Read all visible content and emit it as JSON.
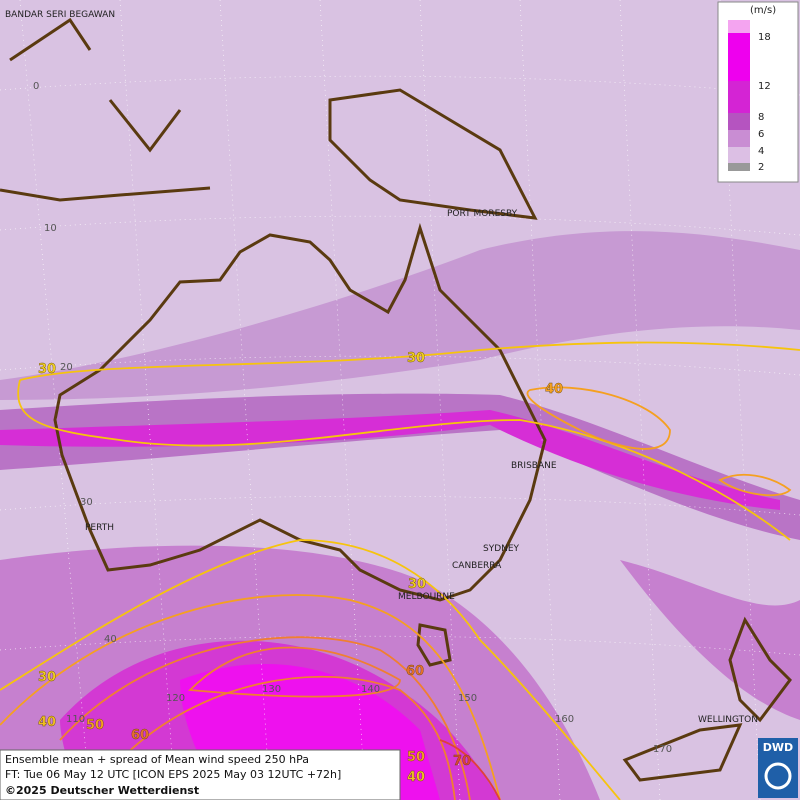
{
  "title": "Ensemble mean + spread of Mean wind speed 250 hPa",
  "forecast": "FT: Tue 06 May 12 UTC [ICON EPS 2025 May 03 12UTC +72h]",
  "copyright": "©2025 Deutscher Wetterdienst",
  "logo": "DWD",
  "legend": {
    "unit": "(m/s)",
    "ticks": [
      18,
      12,
      8,
      6,
      4,
      2
    ]
  },
  "cities": [
    "BANDAR SERI BEGAWAN",
    "PORT MORESBY",
    "BRISBANE",
    "PERTH",
    "SYDNEY",
    "CANBERRA",
    "MELBOURNE",
    "WELLINGTON"
  ],
  "grid_labels": [
    0,
    10,
    20,
    30,
    40,
    110,
    120,
    130,
    140,
    150,
    160,
    170
  ],
  "contour_labels": [
    30,
    30,
    40,
    30,
    30,
    40,
    50,
    60,
    60,
    50,
    40,
    70
  ]
}
